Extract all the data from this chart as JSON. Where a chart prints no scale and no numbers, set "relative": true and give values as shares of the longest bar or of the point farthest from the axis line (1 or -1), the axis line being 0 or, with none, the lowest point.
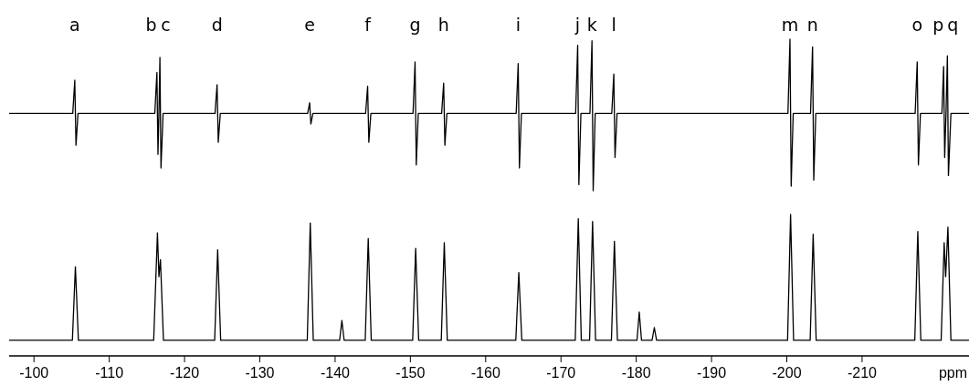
{
  "chart_data": [
    {
      "type": "line",
      "relative": true,
      "xlim": [
        -96.7,
        -224.2
      ],
      "annotations": [
        "a",
        "b",
        "c",
        "d",
        "e",
        "f",
        "g",
        "h",
        "i",
        "j",
        "k",
        "l",
        "m",
        "n",
        "o",
        "p",
        "q"
      ],
      "series": [
        {
          "color": "#000000",
          "x": [
            -96.7,
            -105.15,
            -105.42,
            -105.58,
            -105.85,
            -116.05,
            -116.33,
            -116.47,
            -116.6,
            -116.73,
            -116.87,
            -117.15,
            -124.05,
            -124.32,
            -124.48,
            -124.75,
            -136.35,
            -136.62,
            -136.78,
            -137.05,
            -144.05,
            -144.32,
            -144.48,
            -144.75,
            -150.35,
            -150.62,
            -150.78,
            -151.05,
            -154.15,
            -154.42,
            -154.58,
            -154.85,
            -164.05,
            -164.32,
            -164.48,
            -164.75,
            -171.95,
            -172.22,
            -172.38,
            -172.65,
            -173.85,
            -174.12,
            -174.28,
            -174.55,
            -176.75,
            -177.02,
            -177.18,
            -177.45,
            -200.15,
            -200.42,
            -200.58,
            -200.85,
            -203.15,
            -203.42,
            -203.58,
            -203.85,
            -217.05,
            -217.32,
            -217.48,
            -217.75,
            -220.6,
            -220.83,
            -220.97,
            -221.15,
            -221.33,
            -221.47,
            -221.8,
            -224.2
          ],
          "values": [
            0.51,
            0.51,
            0.73,
            0.3,
            0.51,
            0.51,
            0.78,
            0.24,
            0.51,
            0.88,
            0.15,
            0.51,
            0.51,
            0.7,
            0.32,
            0.51,
            0.51,
            0.58,
            0.44,
            0.51,
            0.51,
            0.69,
            0.32,
            0.51,
            0.51,
            0.85,
            0.17,
            0.51,
            0.51,
            0.71,
            0.3,
            0.51,
            0.51,
            0.84,
            0.15,
            0.51,
            0.51,
            0.96,
            0.04,
            0.51,
            0.51,
            0.99,
            0,
            0.51,
            0.51,
            0.77,
            0.22,
            0.51,
            0.51,
            1,
            0.03,
            0.51,
            0.51,
            0.95,
            0.07,
            0.51,
            0.51,
            0.85,
            0.17,
            0.51,
            0.51,
            0.82,
            0.22,
            0.51,
            0.89,
            0.1,
            0.51,
            0.51
          ]
        }
      ]
    },
    {
      "type": "line",
      "relative": true,
      "xlim": [
        -96.7,
        -224.2
      ],
      "xlabel": "ppm",
      "xticks": [
        -100,
        -110,
        -120,
        -130,
        -140,
        -150,
        -160,
        -170,
        -180,
        -190,
        -200,
        -210
      ],
      "series": [
        {
          "color": "#000000",
          "x": [
            -96.7,
            -105.1,
            -105.5,
            -105.9,
            -115.9,
            -116.4,
            -116.6,
            -116.8,
            -117.2,
            -124.0,
            -124.4,
            -124.8,
            -136.3,
            -136.7,
            -137.1,
            -140.6,
            -140.9,
            -141.2,
            -144.0,
            -144.4,
            -144.8,
            -150.3,
            -150.7,
            -151.1,
            -154.1,
            -154.5,
            -154.9,
            -164.0,
            -164.4,
            -164.8,
            -171.9,
            -172.3,
            -172.7,
            -173.8,
            -174.2,
            -174.6,
            -176.7,
            -177.1,
            -177.5,
            -180.1,
            -180.4,
            -180.7,
            -182.1,
            -182.4,
            -182.7,
            -200.1,
            -200.5,
            -200.9,
            -203.1,
            -203.5,
            -203.9,
            -217.0,
            -217.4,
            -217.8,
            -220.5,
            -220.9,
            -221.1,
            -221.4,
            -221.8,
            -224.2
          ],
          "values": [
            0.11,
            0.11,
            0.63,
            0.11,
            0.11,
            0.87,
            0.56,
            0.68,
            0.11,
            0.11,
            0.75,
            0.11,
            0.11,
            0.94,
            0.11,
            0.11,
            0.25,
            0.11,
            0.11,
            0.83,
            0.11,
            0.11,
            0.76,
            0.11,
            0.11,
            0.8,
            0.11,
            0.11,
            0.59,
            0.11,
            0.11,
            0.97,
            0.11,
            0.11,
            0.95,
            0.11,
            0.11,
            0.81,
            0.11,
            0.11,
            0.31,
            0.11,
            0.11,
            0.2,
            0.11,
            0.11,
            1,
            0.11,
            0.11,
            0.86,
            0.11,
            0.11,
            0.88,
            0.11,
            0.11,
            0.8,
            0.56,
            0.91,
            0.11,
            0.11
          ]
        }
      ]
    }
  ]
}
